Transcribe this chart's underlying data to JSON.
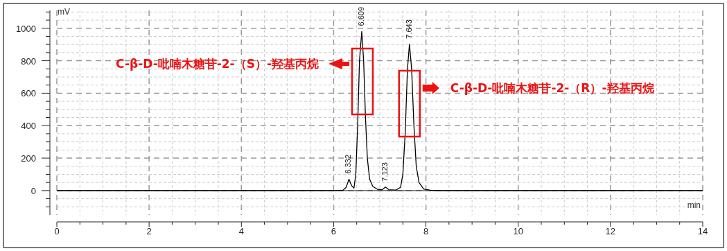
{
  "chart_data": {
    "type": "line",
    "xlabel": "min",
    "ylabel": "mV",
    "x": [
      0,
      6.0,
      6.2,
      6.27,
      6.332,
      6.39,
      6.44,
      6.48,
      6.52,
      6.56,
      6.609,
      6.65,
      6.69,
      6.73,
      6.78,
      6.85,
      6.95,
      7.05,
      7.123,
      7.2,
      7.35,
      7.45,
      7.5,
      7.55,
      7.6,
      7.643,
      7.69,
      7.74,
      7.79,
      7.85,
      7.95,
      8.1,
      8.3,
      14
    ],
    "series": [
      {
        "color": "#000000",
        "values": [
          0,
          0,
          2,
          20,
          70,
          30,
          15,
          100,
          400,
          800,
          980,
          800,
          450,
          200,
          70,
          25,
          8,
          5,
          22,
          5,
          3,
          20,
          100,
          350,
          750,
          902,
          750,
          400,
          150,
          50,
          10,
          2,
          0,
          0
        ]
      }
    ],
    "xlim": [
      0,
      14
    ],
    "ylim": [
      -150,
      1110
    ],
    "xticks": [
      0,
      {
        "value": 0.5,
        "label": null
      },
      {
        "value": 1,
        "label": null
      },
      {
        "value": 1.5,
        "label": null
      },
      2,
      {
        "value": 2.5,
        "label": null
      },
      {
        "value": 3,
        "label": null
      },
      {
        "value": 3.5,
        "label": null
      },
      4,
      {
        "value": 4.5,
        "label": null
      },
      {
        "value": 5,
        "label": null
      },
      {
        "value": 5.5,
        "label": null
      },
      6,
      {
        "value": 6.5,
        "label": null
      },
      {
        "value": 7,
        "label": null
      },
      {
        "value": 7.5,
        "label": null
      },
      8,
      {
        "value": 8.5,
        "label": null
      },
      {
        "value": 9,
        "label": null
      },
      {
        "value": 9.5,
        "label": null
      },
      10,
      {
        "value": 10.5,
        "label": null
      },
      {
        "value": 11,
        "label": null
      },
      {
        "value": 11.5,
        "label": null
      },
      12,
      {
        "value": 12.5,
        "label": null
      },
      {
        "value": 13,
        "label": null
      },
      {
        "value": 13.5,
        "label": null
      },
      14
    ],
    "yticks": [
      {
        "value": -100,
        "label": null
      },
      {
        "value": -50,
        "label": null
      },
      0,
      {
        "value": 50,
        "label": null
      },
      {
        "value": 100,
        "label": null
      },
      {
        "value": 150,
        "label": null
      },
      200,
      {
        "value": 250,
        "label": null
      },
      {
        "value": 300,
        "label": null
      },
      {
        "value": 350,
        "label": null
      },
      400,
      {
        "value": 450,
        "label": null
      },
      {
        "value": 500,
        "label": null
      },
      {
        "value": 550,
        "label": null
      },
      600,
      {
        "value": 650,
        "label": null
      },
      {
        "value": 700,
        "label": null
      },
      {
        "value": 750,
        "label": null
      },
      800,
      {
        "value": 850,
        "label": null
      },
      {
        "value": 900,
        "label": null
      },
      {
        "value": 950,
        "label": null
      },
      1000,
      {
        "value": 1050,
        "label": null
      },
      {
        "value": 1100,
        "label": null
      }
    ],
    "grid": true,
    "annotations": [
      {
        "text": "6.332",
        "x": 6.332,
        "y": 70
      },
      {
        "text": "6.609",
        "x": 6.609,
        "y": 980
      },
      {
        "text": "7.123",
        "x": 7.123,
        "y": 22
      },
      {
        "text": "7.643",
        "x": 7.643,
        "y": 902
      },
      "C-β-D-吡喃木糖苷-2-（S）-羟基丙烷",
      "C-β-D-吡喃木糖苷-2-（R）-羟基丙烷"
    ]
  }
}
